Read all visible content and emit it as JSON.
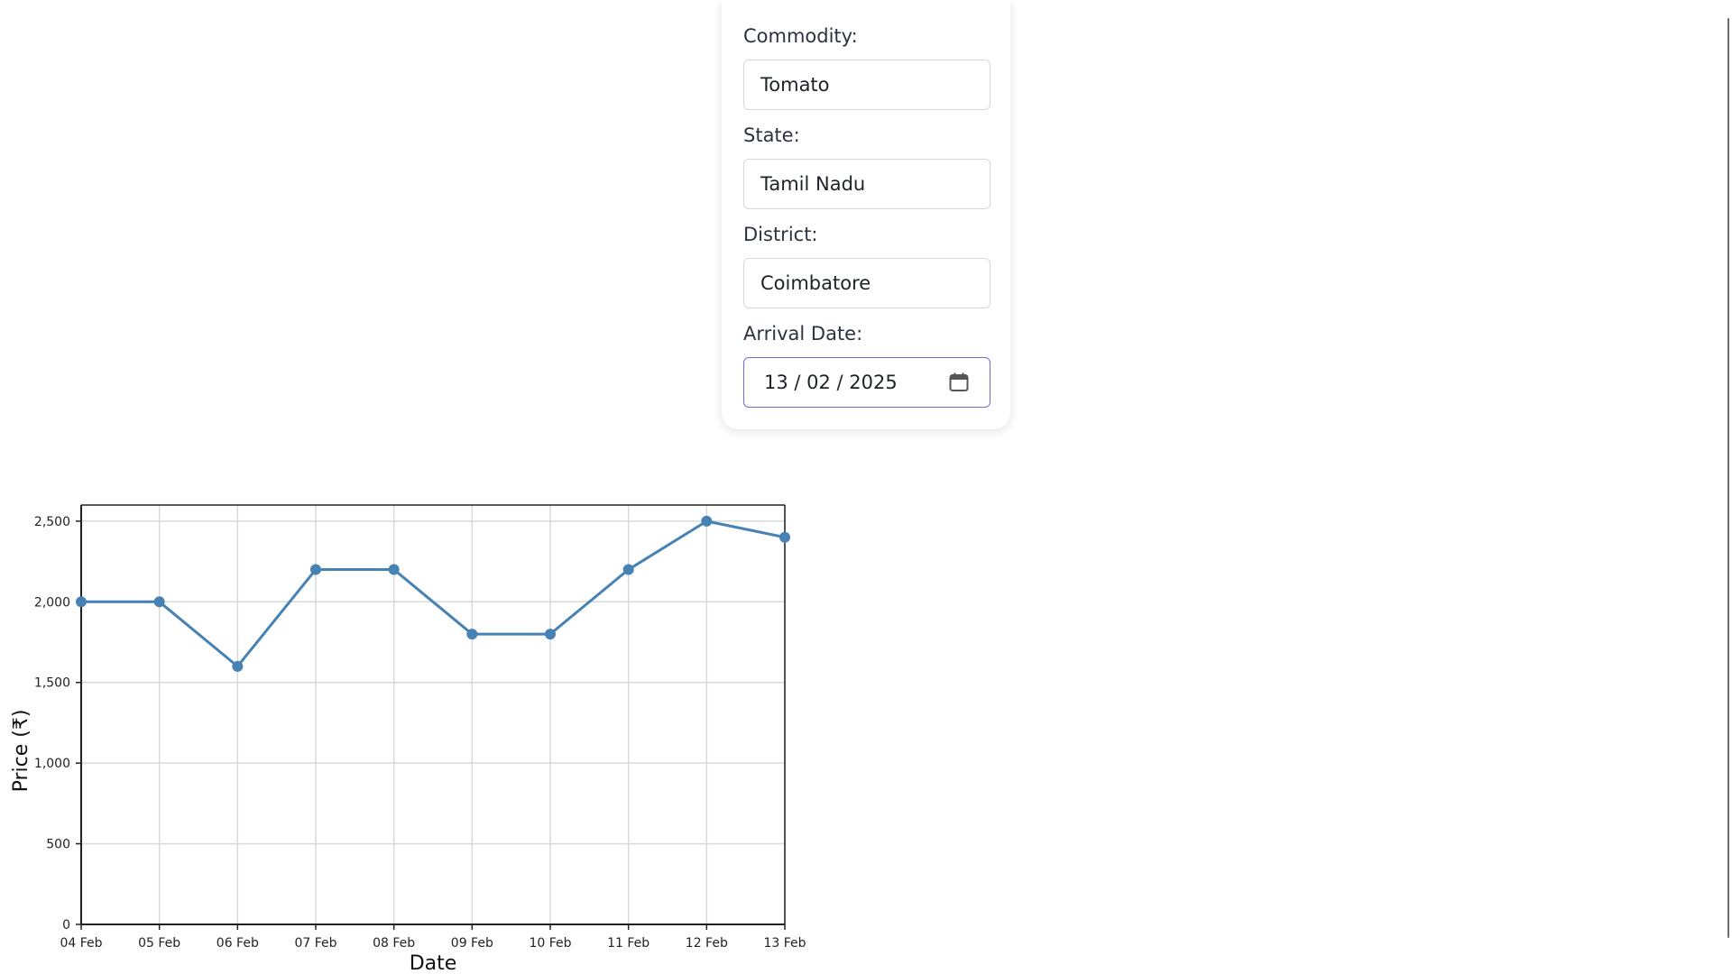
{
  "form": {
    "commodity_label": "Commodity:",
    "commodity_value": "Tomato",
    "state_label": "State:",
    "state_value": "Tamil Nadu",
    "district_label": "District:",
    "district_value": "Coimbatore",
    "arrival_label": "Arrival Date:",
    "arrival_value": "13 / 02 / 2025",
    "calendar_icon": "calendar-icon"
  },
  "colors": {
    "line": "#4682b4",
    "grid": "#d9d9d9",
    "date_border": "#6f6bd6"
  },
  "chart_data": {
    "type": "line",
    "title": "",
    "xlabel": "Date",
    "ylabel": "Price (₹)",
    "categories": [
      "04 Feb",
      "05 Feb",
      "06 Feb",
      "07 Feb",
      "08 Feb",
      "09 Feb",
      "10 Feb",
      "11 Feb",
      "12 Feb",
      "13 Feb"
    ],
    "values": [
      2000,
      2000,
      1600,
      2200,
      2200,
      1800,
      1800,
      2200,
      2500,
      2400
    ],
    "ylim": [
      0,
      2600
    ],
    "yticks": [
      0,
      500,
      1000,
      1500,
      2000,
      2500
    ],
    "ytick_labels": [
      "0",
      "500",
      "1,000",
      "1,500",
      "2,000",
      "2,500"
    ],
    "grid": true
  }
}
